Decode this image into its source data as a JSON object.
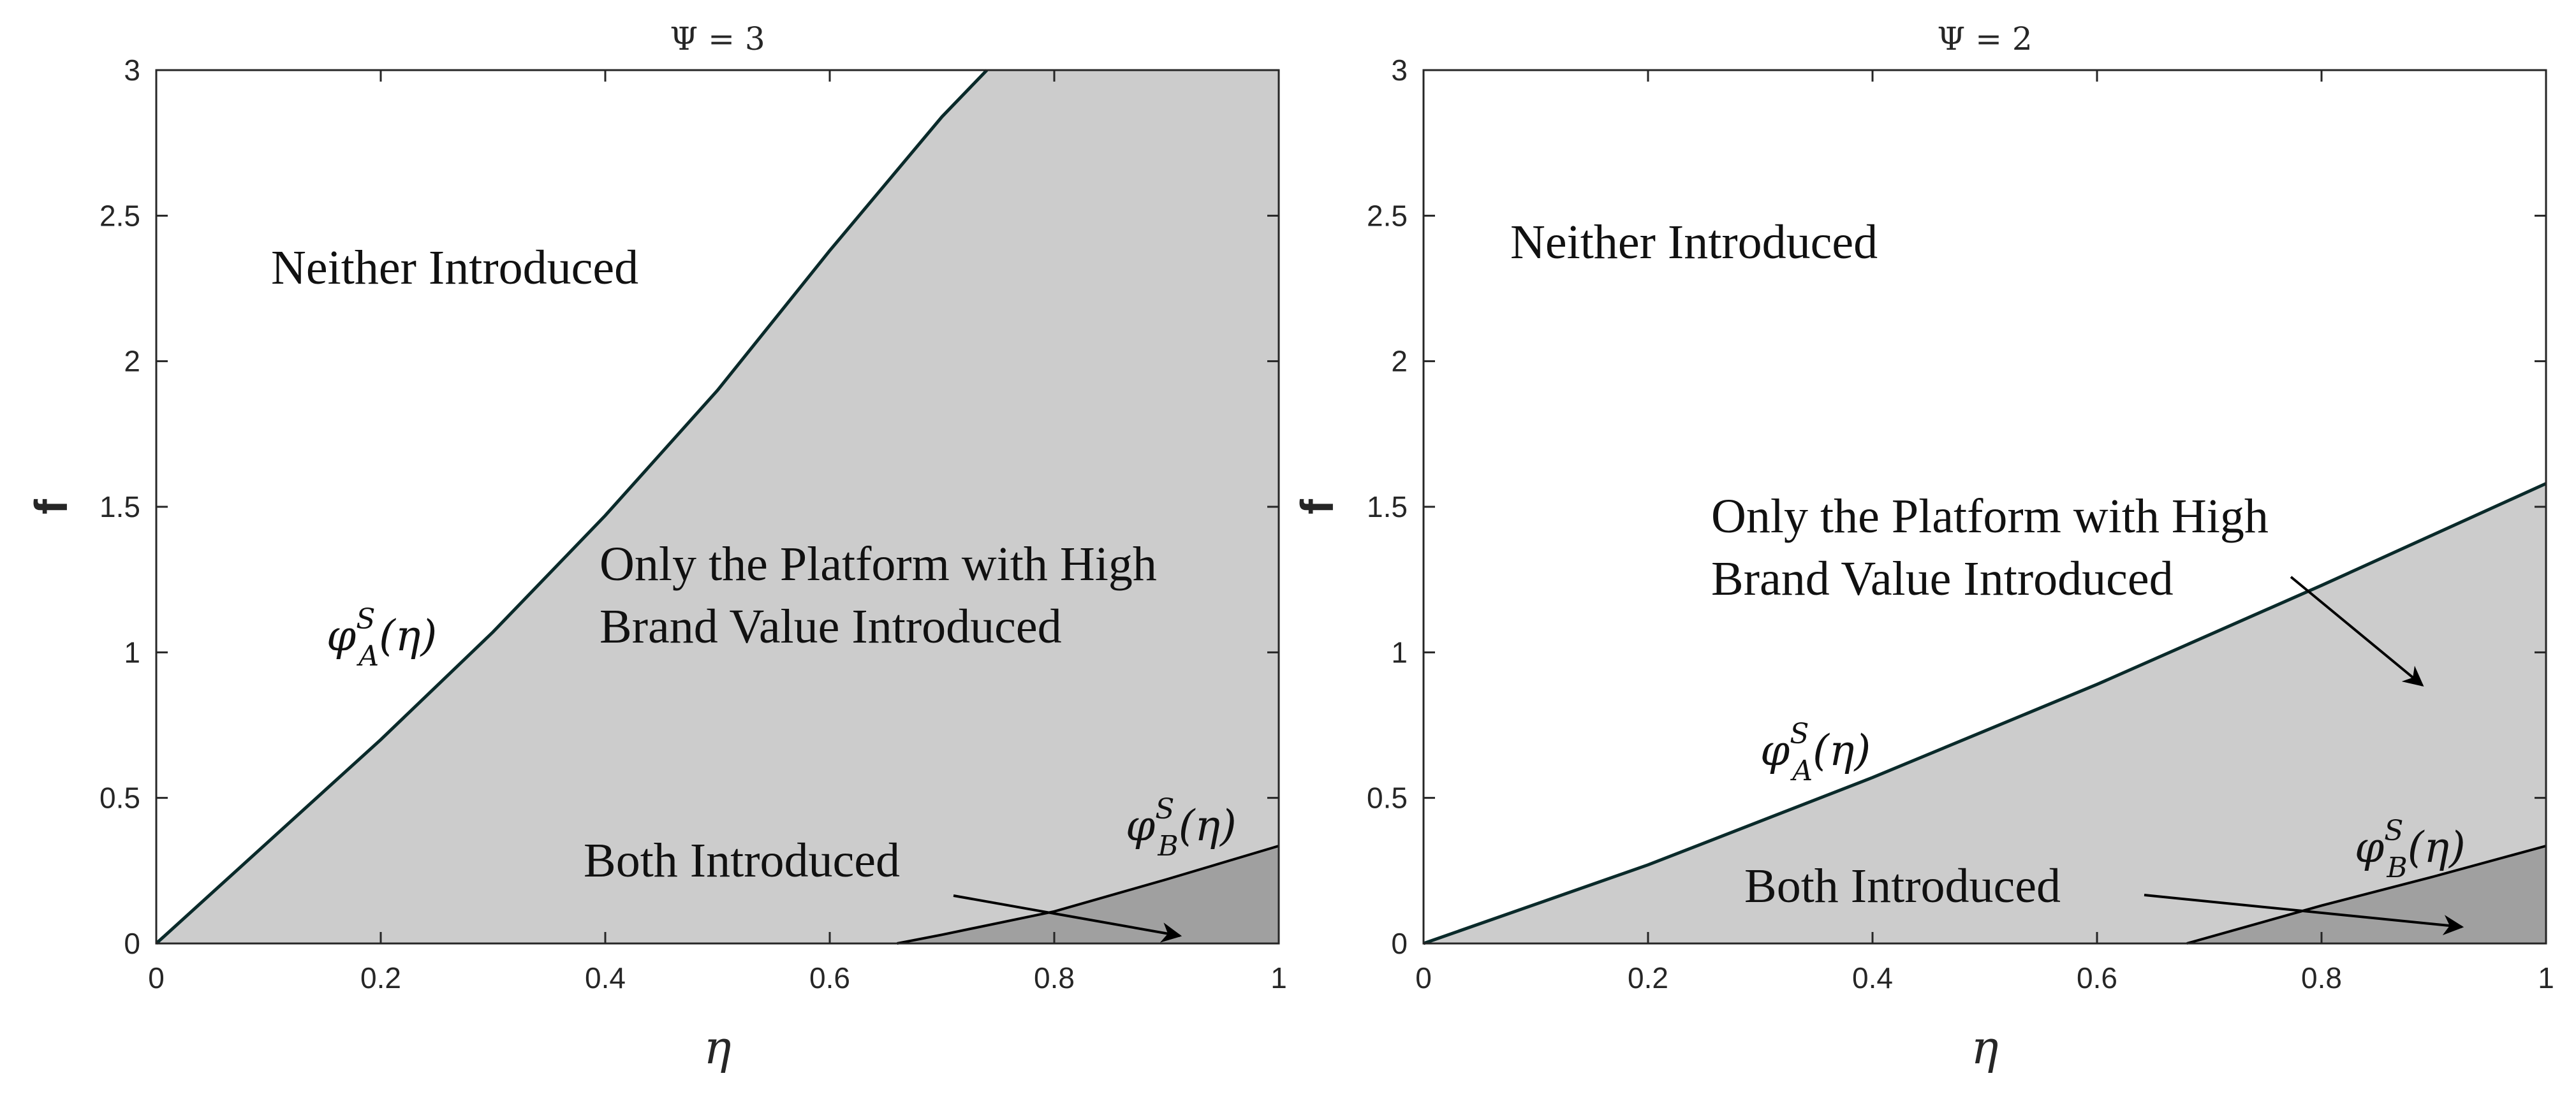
{
  "chart_data": [
    {
      "type": "area",
      "title": "Ψ = 3",
      "xlabel": "η",
      "ylabel": "f",
      "xlim": [
        0,
        1
      ],
      "ylim": [
        0,
        3
      ],
      "xticks": [
        "0",
        "0.2",
        "0.4",
        "0.6",
        "0.8",
        "1"
      ],
      "yticks": [
        "0",
        "0.5",
        "1",
        "1.5",
        "2",
        "2.5",
        "3"
      ],
      "grid": false,
      "colors": {
        "none": "#ffffff",
        "only_high": "#cccccc",
        "both": "#a0a0a0",
        "curve_a": "#0a2a2a",
        "curve_b": "#000000"
      },
      "curves": [
        {
          "label": "A",
          "x": [
            0,
            0.1,
            0.2,
            0.3,
            0.4,
            0.5,
            0.6,
            0.7,
            0.74
          ],
          "y": [
            0,
            0.35,
            0.7,
            1.07,
            1.47,
            1.9,
            2.38,
            2.84,
            3.0
          ]
        },
        {
          "label": "B",
          "x": [
            0.66,
            0.7,
            0.8,
            0.9,
            1.0
          ],
          "y": [
            0,
            0.03,
            0.11,
            0.22,
            0.335
          ]
        }
      ],
      "annotations": {
        "none": "Neither Introduced",
        "only_high_1": "Only the Platform with High",
        "only_high_2": "Brand Value Introduced",
        "both": "Both Introduced",
        "curve_a": "φ",
        "curve_b": "φ",
        "curve_sup": "S",
        "curve_sub_a": "A",
        "curve_sub_b": "B",
        "curve_arg": "(η)"
      }
    },
    {
      "type": "area",
      "title": "Ψ = 2",
      "xlabel": "η",
      "ylabel": "f",
      "xlim": [
        0,
        1
      ],
      "ylim": [
        0,
        3
      ],
      "xticks": [
        "0",
        "0.2",
        "0.4",
        "0.6",
        "0.8",
        "1"
      ],
      "yticks": [
        "0",
        "0.5",
        "1",
        "1.5",
        "2",
        "2.5",
        "3"
      ],
      "grid": false,
      "colors": {
        "none": "#ffffff",
        "only_high": "#cccccc",
        "both": "#a0a0a0",
        "curve_a": "#0a2a2a",
        "curve_b": "#000000"
      },
      "curves": [
        {
          "label": "A",
          "x": [
            0,
            0.2,
            0.4,
            0.6,
            0.8,
            1.0
          ],
          "y": [
            0,
            0.27,
            0.57,
            0.89,
            1.23,
            1.58
          ]
        },
        {
          "label": "B",
          "x": [
            0.68,
            0.8,
            0.9,
            1.0
          ],
          "y": [
            0,
            0.13,
            0.23,
            0.335
          ]
        }
      ],
      "annotations": {
        "none": "Neither Introduced",
        "only_high_1": "Only the Platform with High",
        "only_high_2": "Brand Value Introduced",
        "both": "Both Introduced",
        "curve_a": "φ",
        "curve_b": "φ",
        "curve_sup": "S",
        "curve_sub_a": "A",
        "curve_sub_b": "B",
        "curve_arg": "(η)"
      }
    }
  ]
}
